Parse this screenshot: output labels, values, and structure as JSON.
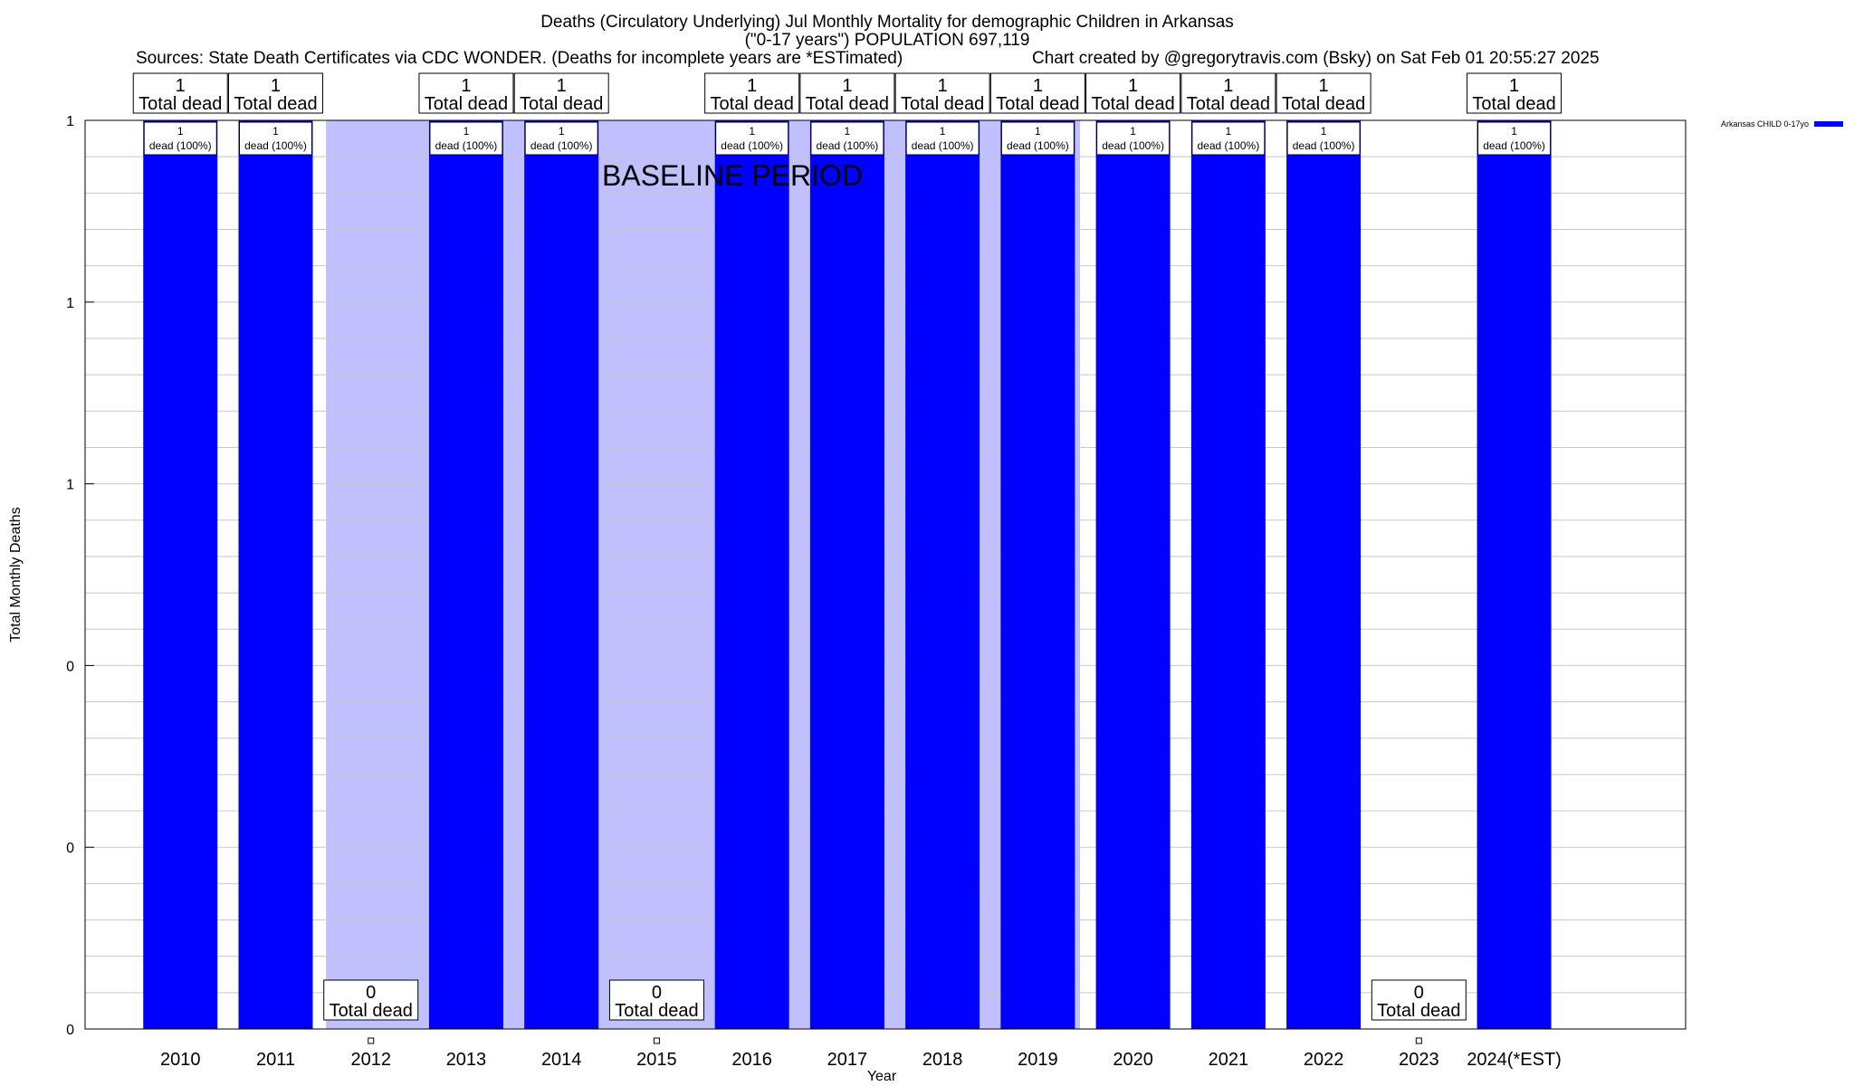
{
  "header": {
    "title_line1": "Deaths (Circulatory Underlying) Jul Monthly Mortality for demographic Children in Arkansas",
    "title_line2": "(\"0-17 years\") POPULATION 697,119",
    "sources": "Sources: State Death Certificates via CDC WONDER. (Deaths for incomplete years are *ESTimated)",
    "credit": "Chart created by @gregorytravis.com (Bsky) on Sat Feb 01 20:55:27 2025"
  },
  "chart_data": {
    "type": "bar",
    "xlabel": "Year",
    "ylabel": "Total Monthly Deaths",
    "ylim": [
      0,
      1
    ],
    "y_tick_labels": [
      "0",
      "0",
      "0",
      "1",
      "1",
      "1"
    ],
    "categories": [
      "2010",
      "2011",
      "2012",
      "2013",
      "2014",
      "2015",
      "2016",
      "2017",
      "2018",
      "2019",
      "2020",
      "2021",
      "2022",
      "2023",
      "2024(*EST)"
    ],
    "series": [
      {
        "name": "Arkansas CHILD 0-17yo",
        "color": "#0000ff",
        "values": [
          1,
          1,
          0,
          1,
          1,
          0,
          1,
          1,
          1,
          1,
          1,
          1,
          1,
          0,
          1
        ]
      }
    ],
    "top_labels": [
      {
        "value": "1",
        "text": "Total dead"
      },
      {
        "value": "1",
        "text": "Total dead"
      },
      {
        "value": "0",
        "text": "Total dead"
      },
      {
        "value": "1",
        "text": "Total dead"
      },
      {
        "value": "1",
        "text": "Total dead"
      },
      {
        "value": "0",
        "text": "Total dead"
      },
      {
        "value": "1",
        "text": "Total dead"
      },
      {
        "value": "1",
        "text": "Total dead"
      },
      {
        "value": "1",
        "text": "Total dead"
      },
      {
        "value": "1",
        "text": "Total dead"
      },
      {
        "value": "1",
        "text": "Total dead"
      },
      {
        "value": "1",
        "text": "Total dead"
      },
      {
        "value": "1",
        "text": "Total dead"
      },
      {
        "value": "0",
        "text": "Total dead"
      },
      {
        "value": "1",
        "text": "Total dead"
      }
    ],
    "bar_labels": [
      "1",
      "dead (100%)"
    ],
    "baseline_label": "BASELINE PERIOD",
    "baseline_color": "#c0c0ff",
    "legend_position": "top-right",
    "grid": true
  }
}
